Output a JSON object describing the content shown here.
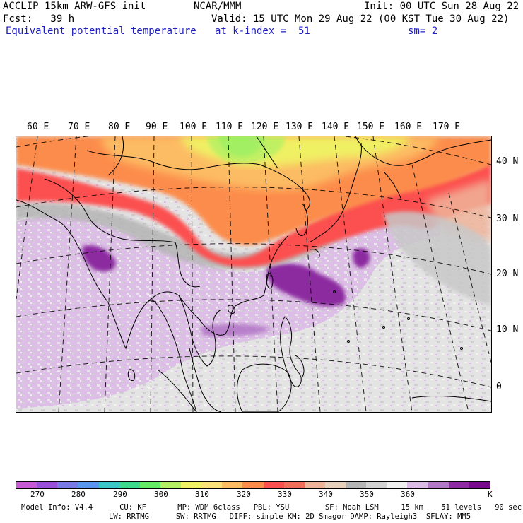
{
  "header": {
    "model_title": "ACCLIP 15km ARW-GFS init",
    "org": "NCAR/MMM",
    "init": "Init: 00 UTC Sun 28 Aug 22",
    "fcst": "Fcst:   39 h",
    "valid": "Valid: 15 UTC Mon 29 Aug 22 (00 KST Tue 30 Aug 22)",
    "field": "Equivalent potential temperature",
    "level": "at k-index =  51",
    "smooth": "sm= 2"
  },
  "map": {
    "lon_labels": [
      "60 E",
      "70 E",
      "80 E",
      "90 E",
      "100 E",
      "110 E",
      "120 E",
      "130 E",
      "140 E",
      "150 E",
      "160 E",
      "170 E"
    ],
    "lat_labels": [
      "40 N",
      "30 N",
      "20 N",
      "10 N",
      "0"
    ],
    "colors": {
      "ocean_background": "#e8e8e8",
      "coastline": "#000000"
    }
  },
  "colorbar": {
    "colors": [
      "#c85ad6",
      "#9a50d8",
      "#7a7ae6",
      "#5a96ee",
      "#3cc8c8",
      "#3cdc8c",
      "#64ec64",
      "#b4f064",
      "#f0f064",
      "#fce17a",
      "#fcbc64",
      "#fc8c4c",
      "#fc5050",
      "#f06e5a",
      "#f0b49a",
      "#e8d2be",
      "#b4b4b4",
      "#d2d2d2",
      "#f0f0f0",
      "#dcbce6",
      "#b478c8",
      "#8c2ca0",
      "#780a8c"
    ],
    "tick_labels": [
      "270",
      "280",
      "290",
      "300",
      "310",
      "320",
      "330",
      "340",
      "350",
      "360",
      "K"
    ]
  },
  "footer": {
    "line1": "Model Info: V4.4      CU: KF       MP: WDM 6class   PBL: YSU        SF: Noah LSM     15 km    51 levels   90 sec",
    "line2": "LW: RRTMG      SW: RRTMG   DIFF: simple KM: 2D Smagor DAMP: Rayleigh3  SFLAY: MM5"
  }
}
